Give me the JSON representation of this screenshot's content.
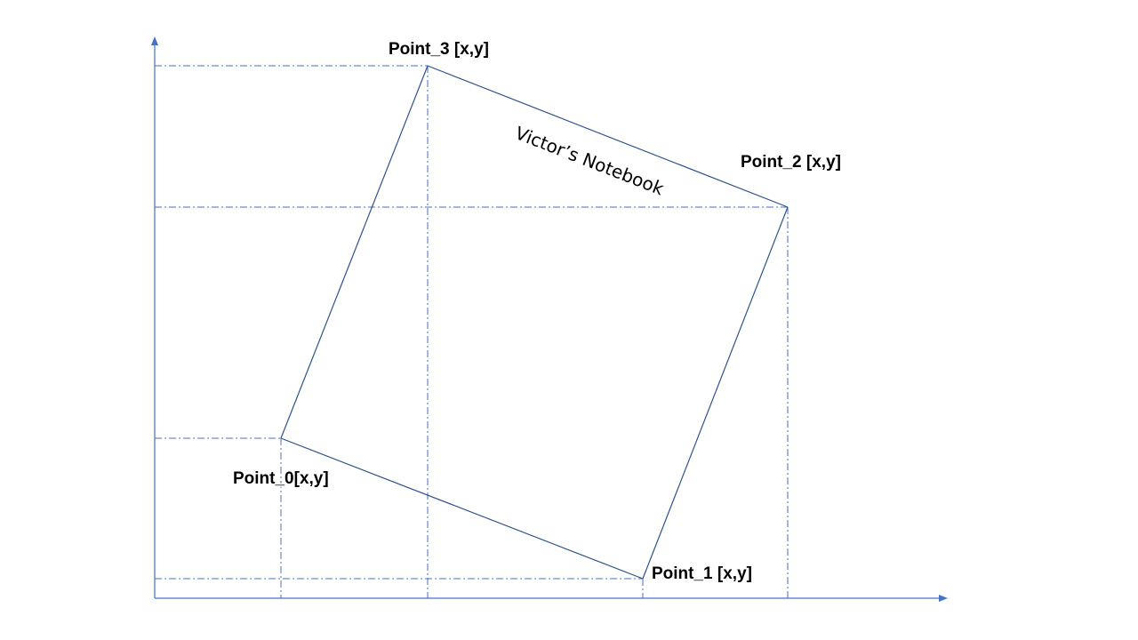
{
  "diagram": {
    "points": [
      {
        "id": "p0",
        "label": "Point_0[x,y]"
      },
      {
        "id": "p1",
        "label": "Point_1 [x,y]"
      },
      {
        "id": "p2",
        "label": "Point_2 [x,y]"
      },
      {
        "id": "p3",
        "label": "Point_3 [x,y]"
      }
    ],
    "caption": "Victor’s Notebook",
    "colors": {
      "axis": "#4472C4",
      "edge": "#2F528F",
      "text": "#000000"
    }
  }
}
